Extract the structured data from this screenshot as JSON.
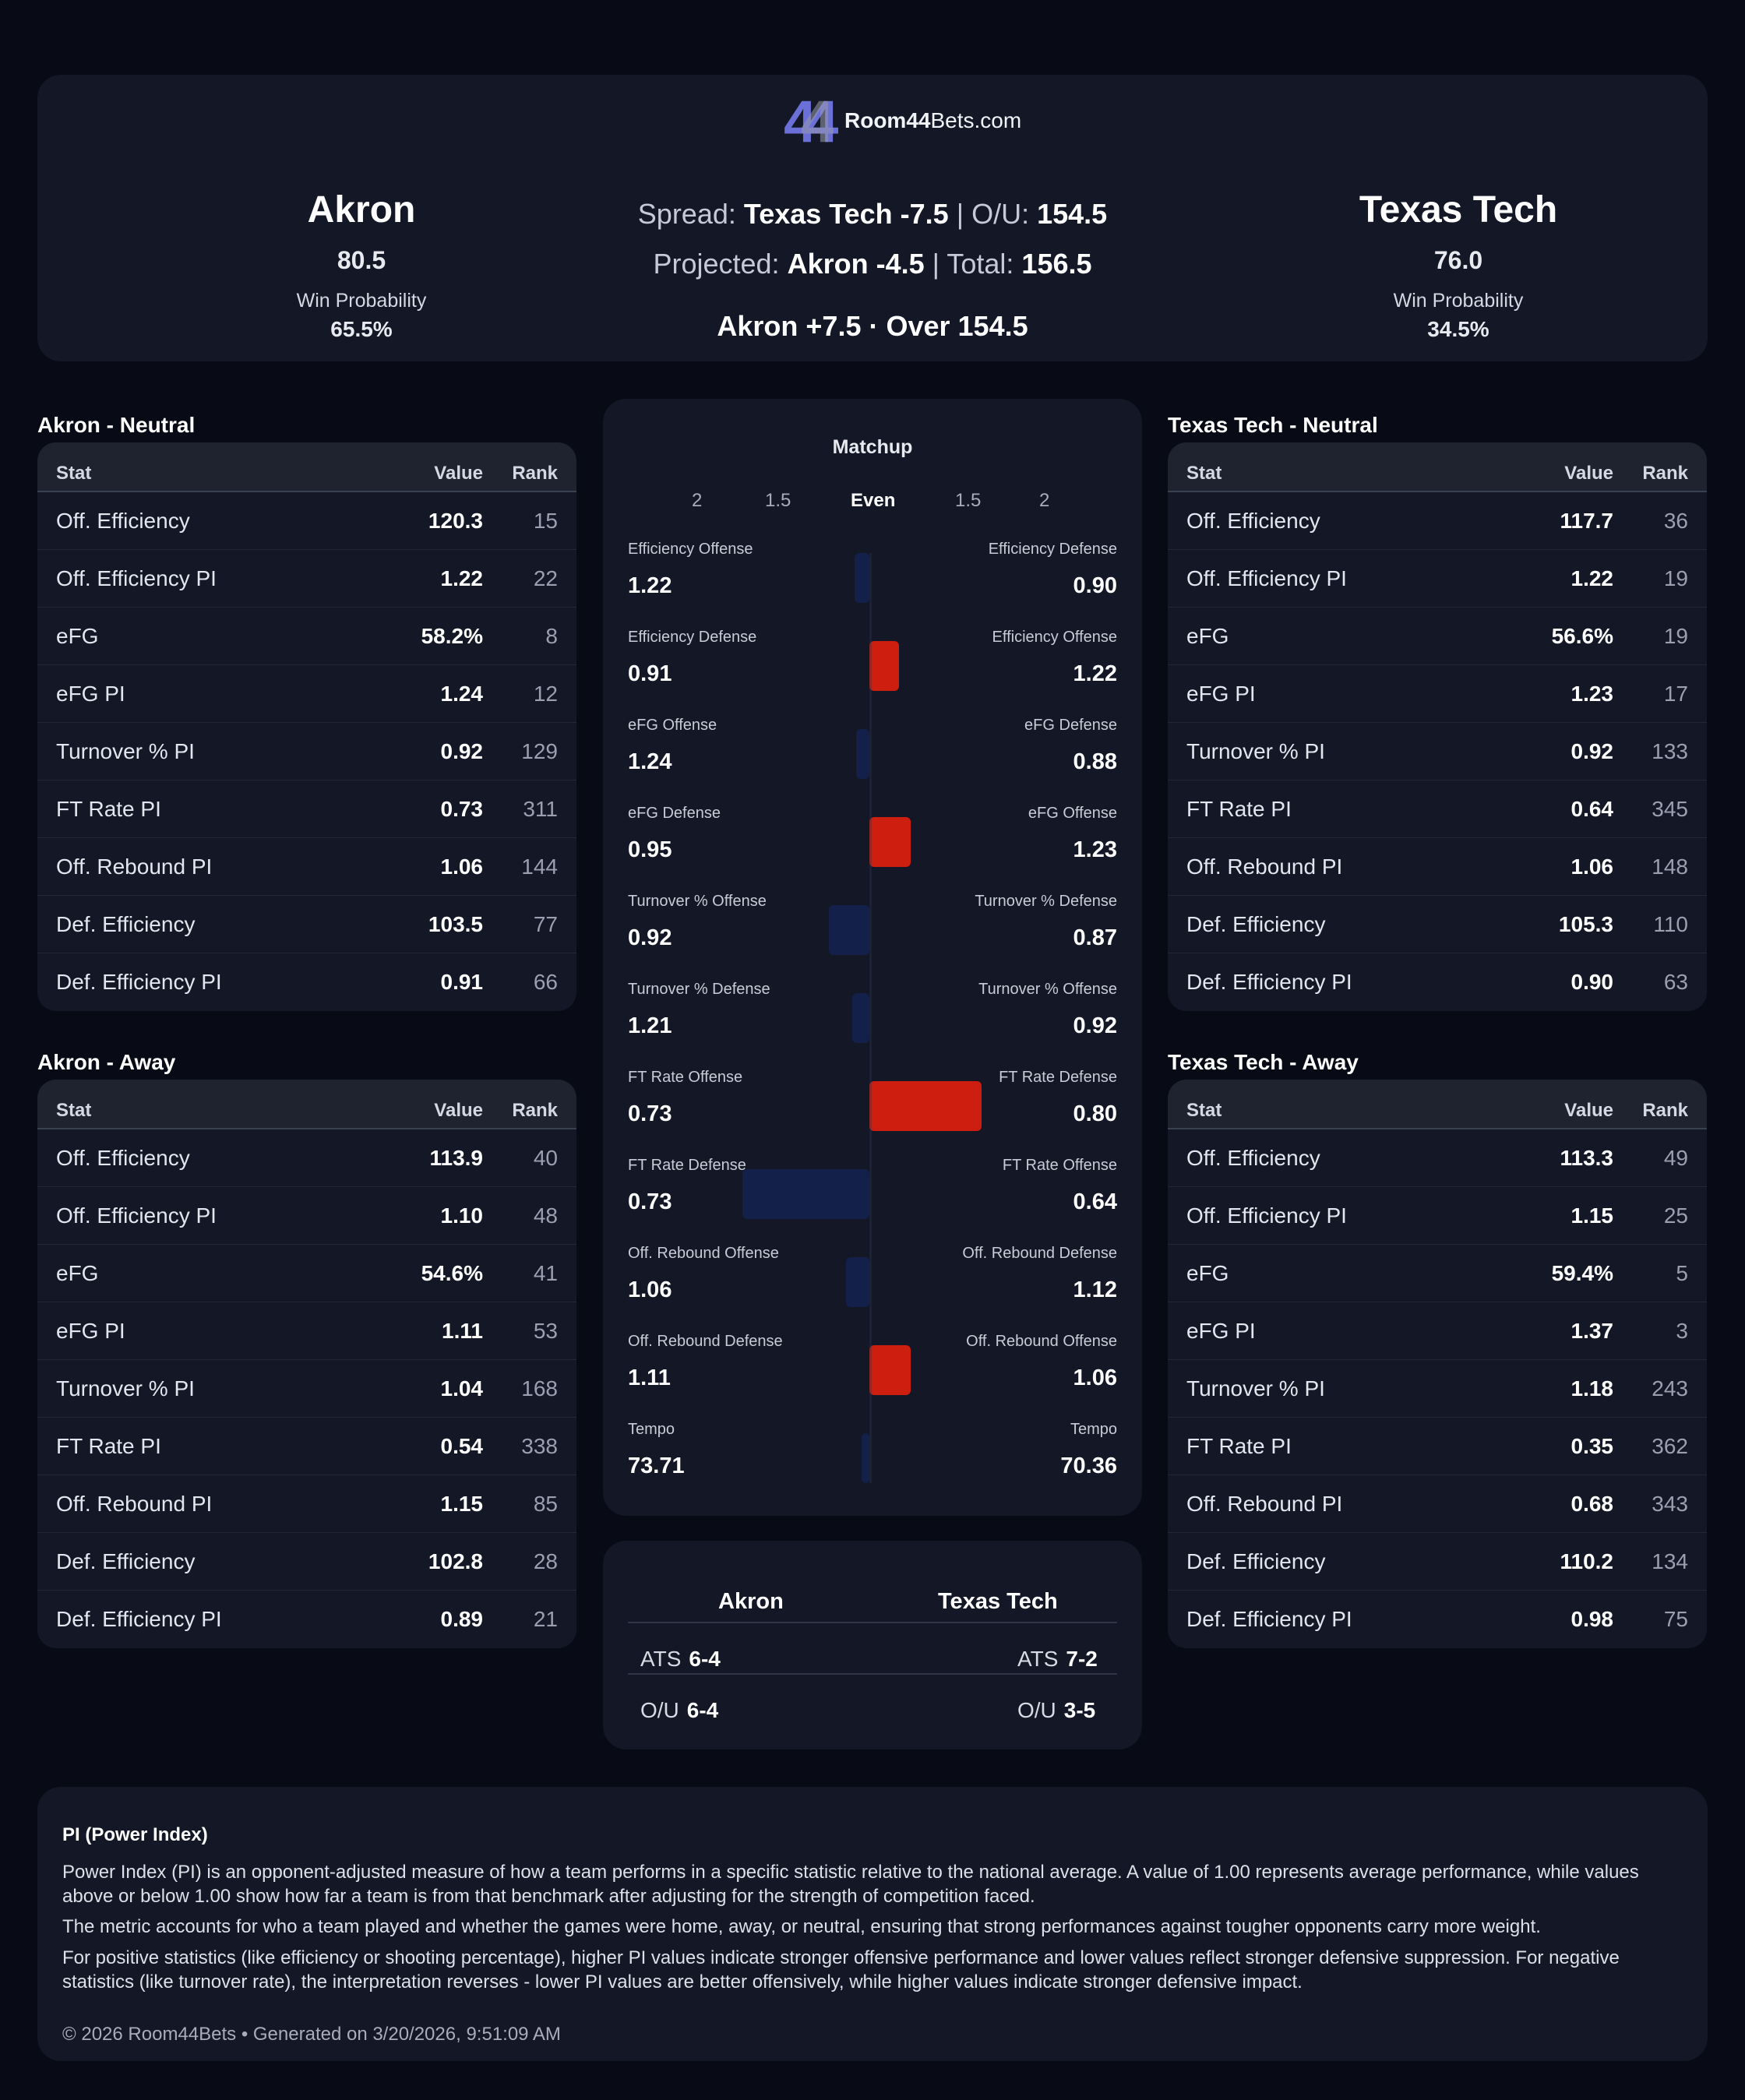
{
  "brand": {
    "logo_text": "44",
    "name_bold": "Room44",
    "name_rest": "Bets.com",
    "accent": "#6b6fd8"
  },
  "header": {
    "left": {
      "name": "Akron",
      "score": "80.5",
      "wp_label": "Win Probability",
      "wp": "65.5%"
    },
    "right": {
      "name": "Texas Tech",
      "score": "76.0",
      "wp_label": "Win Probability",
      "wp": "34.5%"
    },
    "spread_label": "Spread:",
    "spread_value": "Texas Tech -7.5",
    "sep1": "|",
    "ou_label": "O/U:",
    "ou_value": "154.5",
    "proj_label": "Projected:",
    "proj_value": "Akron -4.5",
    "sep2": "|",
    "total_label": "Total:",
    "total_value": "156.5",
    "pick": "Akron +7.5 · Over 154.5"
  },
  "table_headers": {
    "stat": "Stat",
    "value": "Value",
    "rank": "Rank"
  },
  "tables": {
    "akron_neutral": {
      "title": "Akron - Neutral",
      "rows": [
        {
          "stat": "Off. Efficiency",
          "value": "120.3",
          "rank": "15"
        },
        {
          "stat": "Off. Efficiency PI",
          "value": "1.22",
          "rank": "22"
        },
        {
          "stat": "eFG",
          "value": "58.2%",
          "rank": "8"
        },
        {
          "stat": "eFG PI",
          "value": "1.24",
          "rank": "12"
        },
        {
          "stat": "Turnover % PI",
          "value": "0.92",
          "rank": "129"
        },
        {
          "stat": "FT Rate PI",
          "value": "0.73",
          "rank": "311"
        },
        {
          "stat": "Off. Rebound PI",
          "value": "1.06",
          "rank": "144"
        },
        {
          "stat": "Def. Efficiency",
          "value": "103.5",
          "rank": "77"
        },
        {
          "stat": "Def. Efficiency PI",
          "value": "0.91",
          "rank": "66"
        }
      ]
    },
    "akron_away": {
      "title": "Akron - Away",
      "rows": [
        {
          "stat": "Off. Efficiency",
          "value": "113.9",
          "rank": "40"
        },
        {
          "stat": "Off. Efficiency PI",
          "value": "1.10",
          "rank": "48"
        },
        {
          "stat": "eFG",
          "value": "54.6%",
          "rank": "41"
        },
        {
          "stat": "eFG PI",
          "value": "1.11",
          "rank": "53"
        },
        {
          "stat": "Turnover % PI",
          "value": "1.04",
          "rank": "168"
        },
        {
          "stat": "FT Rate PI",
          "value": "0.54",
          "rank": "338"
        },
        {
          "stat": "Off. Rebound PI",
          "value": "1.15",
          "rank": "85"
        },
        {
          "stat": "Def. Efficiency",
          "value": "102.8",
          "rank": "28"
        },
        {
          "stat": "Def. Efficiency PI",
          "value": "0.89",
          "rank": "21"
        }
      ]
    },
    "tt_neutral": {
      "title": "Texas Tech - Neutral",
      "rows": [
        {
          "stat": "Off. Efficiency",
          "value": "117.7",
          "rank": "36"
        },
        {
          "stat": "Off. Efficiency PI",
          "value": "1.22",
          "rank": "19"
        },
        {
          "stat": "eFG",
          "value": "56.6%",
          "rank": "19"
        },
        {
          "stat": "eFG PI",
          "value": "1.23",
          "rank": "17"
        },
        {
          "stat": "Turnover % PI",
          "value": "0.92",
          "rank": "133"
        },
        {
          "stat": "FT Rate PI",
          "value": "0.64",
          "rank": "345"
        },
        {
          "stat": "Off. Rebound PI",
          "value": "1.06",
          "rank": "148"
        },
        {
          "stat": "Def. Efficiency",
          "value": "105.3",
          "rank": "110"
        },
        {
          "stat": "Def. Efficiency PI",
          "value": "0.90",
          "rank": "63"
        }
      ]
    },
    "tt_away": {
      "title": "Texas Tech - Away",
      "rows": [
        {
          "stat": "Off. Efficiency",
          "value": "113.3",
          "rank": "49"
        },
        {
          "stat": "Off. Efficiency PI",
          "value": "1.15",
          "rank": "25"
        },
        {
          "stat": "eFG",
          "value": "59.4%",
          "rank": "5"
        },
        {
          "stat": "eFG PI",
          "value": "1.37",
          "rank": "3"
        },
        {
          "stat": "Turnover % PI",
          "value": "1.18",
          "rank": "243"
        },
        {
          "stat": "FT Rate PI",
          "value": "0.35",
          "rank": "362"
        },
        {
          "stat": "Off. Rebound PI",
          "value": "0.68",
          "rank": "343"
        },
        {
          "stat": "Def. Efficiency",
          "value": "110.2",
          "rank": "134"
        },
        {
          "stat": "Def. Efficiency PI",
          "value": "0.98",
          "rank": "75"
        }
      ]
    }
  },
  "matchup": {
    "title": "Matchup",
    "scale": [
      "2",
      "1.5",
      "Even",
      "1.5",
      "2"
    ],
    "colors": {
      "favor_right": "#cd1e10",
      "favor_left": "#13214a"
    },
    "rows": [
      {
        "left_label": "Efficiency Offense",
        "left_value": "1.22",
        "right_label": "Efficiency Defense",
        "right_value": "0.90",
        "ratio": 0.9
      },
      {
        "left_label": "Efficiency Defense",
        "left_value": "0.91",
        "right_label": "Efficiency Offense",
        "right_value": "1.22",
        "ratio": 1.2
      },
      {
        "left_label": "eFG Offense",
        "left_value": "1.24",
        "right_label": "eFG Defense",
        "right_value": "0.88",
        "ratio": 0.91
      },
      {
        "left_label": "eFG Defense",
        "left_value": "0.95",
        "right_label": "eFG Offense",
        "right_value": "1.23",
        "ratio": 1.28
      },
      {
        "left_label": "Turnover % Offense",
        "left_value": "0.92",
        "right_label": "Turnover % Defense",
        "right_value": "0.87",
        "ratio": 0.72
      },
      {
        "left_label": "Turnover % Defense",
        "left_value": "1.21",
        "right_label": "Turnover % Offense",
        "right_value": "0.92",
        "ratio": 0.88
      },
      {
        "left_label": "FT Rate Offense",
        "left_value": "0.73",
        "right_label": "FT Rate Defense",
        "right_value": "0.80",
        "ratio": 1.77
      },
      {
        "left_label": "FT Rate Defense",
        "left_value": "0.73",
        "right_label": "FT Rate Offense",
        "right_value": "0.64",
        "ratio": 0.13
      },
      {
        "left_label": "Off. Rebound Offense",
        "left_value": "1.06",
        "right_label": "Off. Rebound Defense",
        "right_value": "1.12",
        "ratio": 0.84
      },
      {
        "left_label": "Off. Rebound Defense",
        "left_value": "1.11",
        "right_label": "Off. Rebound Offense",
        "right_value": "1.06",
        "ratio": 1.28
      },
      {
        "left_label": "Tempo",
        "left_value": "73.71",
        "right_label": "Tempo",
        "right_value": "70.36",
        "ratio": 0.95
      }
    ]
  },
  "records": {
    "left_team": "Akron",
    "right_team": "Texas Tech",
    "ats_label": "ATS",
    "ou_label": "O/U",
    "left_ats": "6-4",
    "left_ou": "6-4",
    "right_ats": "7-2",
    "right_ou": "3-5"
  },
  "footer": {
    "title": "PI (Power Index)",
    "p1": "Power Index (PI) is an opponent-adjusted measure of how a team performs in a specific statistic relative to the national average. A value of 1.00 represents average performance, while values above or below 1.00 show how far a team is from that benchmark after adjusting for the strength of competition faced.",
    "p2": "The metric accounts for who a team played and whether the games were home, away, or neutral, ensuring that strong performances against tougher opponents carry more weight.",
    "p3": "For positive statistics (like efficiency or shooting percentage), higher PI values indicate stronger offensive performance and lower values reflect stronger defensive suppression. For negative statistics (like turnover rate), the interpretation reverses - lower PI values are better offensively, while higher values indicate stronger defensive impact.",
    "copyright": "© 2026 Room44Bets • Generated on 3/20/2026, 9:51:09 AM"
  }
}
